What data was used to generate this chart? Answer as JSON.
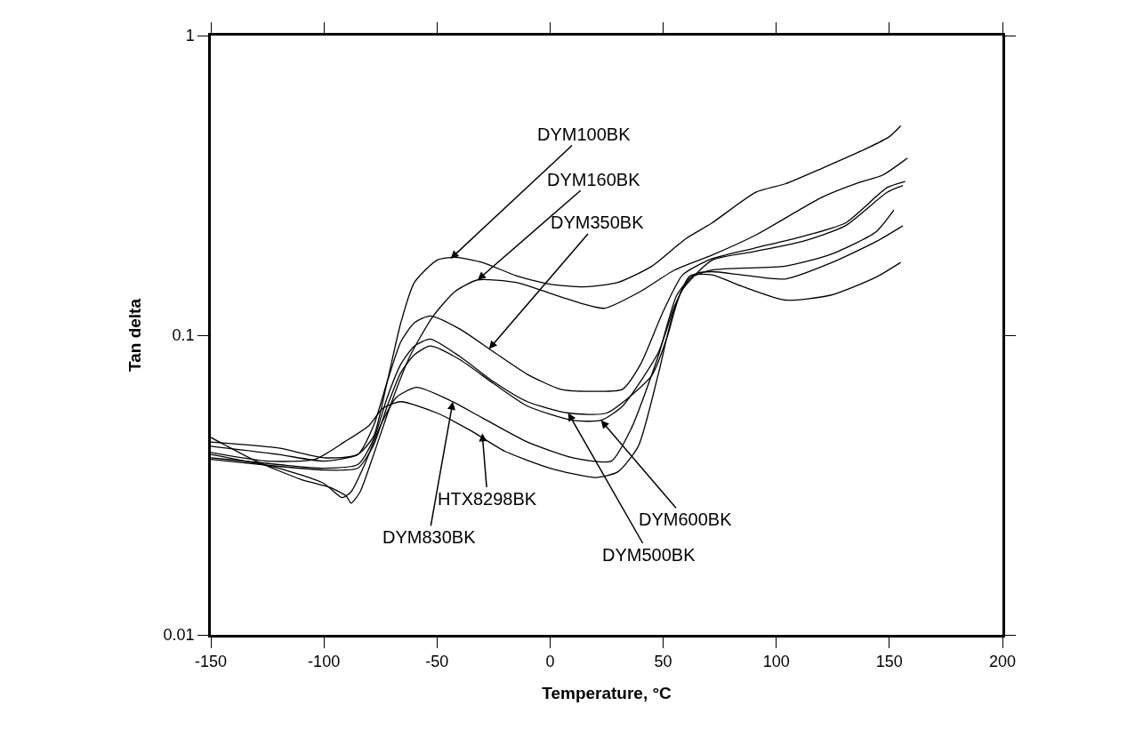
{
  "chart_data": {
    "type": "line",
    "xlabel": "Temperature, °C",
    "ylabel": "Tan delta",
    "log": "y",
    "xlim": [
      -150,
      200
    ],
    "xticks": [
      -150,
      -100,
      -50,
      0,
      50,
      100,
      150,
      200
    ],
    "ylim": [
      0.01,
      1
    ],
    "yticks": [
      0.01,
      0.1,
      1
    ],
    "series": [
      {
        "color": "#000000",
        "x": [
          -150,
          -120,
          -100,
          -85,
          -78,
          -72,
          -66,
          -60,
          -50,
          -42,
          -30,
          -15,
          0,
          15,
          30,
          45,
          60,
          71.6,
          91,
          104,
          120,
          140,
          150,
          155
        ],
        "values": [
          0.0426,
          0.04,
          0.038,
          0.04,
          0.046,
          0.07,
          0.11,
          0.15,
          0.178,
          0.182,
          0.175,
          0.158,
          0.148,
          0.145,
          0.15,
          0.17,
          0.21,
          0.237,
          0.3,
          0.32,
          0.36,
          0.42,
          0.46,
          0.5
        ]
      },
      {
        "color": "#000000",
        "x": [
          -150,
          -130,
          -110,
          -97,
          -90,
          -88,
          -84,
          -78,
          -70,
          -62,
          -52,
          -42,
          -32,
          -15,
          0,
          15,
          24,
          40,
          55,
          71.6,
          91,
          120,
          137,
          147,
          158
        ],
        "values": [
          0.0456,
          0.038,
          0.033,
          0.031,
          0.029,
          0.0275,
          0.03,
          0.04,
          0.06,
          0.085,
          0.115,
          0.14,
          0.153,
          0.15,
          0.138,
          0.127,
          0.123,
          0.14,
          0.165,
          0.185,
          0.216,
          0.288,
          0.324,
          0.342,
          0.39
        ]
      },
      {
        "color": "#000000",
        "x": [
          -150,
          -120,
          -100,
          -85,
          -78,
          -72,
          -66,
          -60,
          -53,
          -40,
          -25,
          -10,
          4.7,
          20,
          32,
          40,
          50,
          58.6,
          71.6,
          90,
          111,
          130.6,
          149,
          157
        ],
        "values": [
          0.044,
          0.042,
          0.039,
          0.04,
          0.05,
          0.07,
          0.095,
          0.11,
          0.116,
          0.105,
          0.088,
          0.074,
          0.066,
          0.065,
          0.066,
          0.08,
          0.12,
          0.159,
          0.18,
          0.195,
          0.213,
          0.237,
          0.311,
          0.326
        ]
      },
      {
        "color": "#000000",
        "x": [
          -150,
          -120,
          -100,
          -85,
          -78,
          -72,
          -66,
          -60,
          -53,
          -40,
          -25,
          -10,
          8,
          25,
          45,
          52,
          58,
          71.6,
          90,
          111,
          130.6,
          149,
          156
        ],
        "values": [
          0.039,
          0.037,
          0.036,
          0.037,
          0.045,
          0.062,
          0.08,
          0.092,
          0.097,
          0.085,
          0.07,
          0.06,
          0.055,
          0.055,
          0.0735,
          0.1,
          0.14,
          0.178,
          0.19,
          0.205,
          0.232,
          0.3,
          0.316
        ]
      },
      {
        "color": "#000000",
        "x": [
          -150,
          -120,
          -100,
          -85,
          -78,
          -72,
          -66,
          -60,
          -53,
          -40,
          -25,
          -10,
          10,
          22.5,
          32,
          48,
          55,
          62,
          71.6,
          104,
          124,
          144,
          152
        ],
        "values": [
          0.0385,
          0.0365,
          0.0355,
          0.036,
          0.043,
          0.058,
          0.075,
          0.086,
          0.092,
          0.083,
          0.069,
          0.058,
          0.052,
          0.052,
          0.058,
          0.088,
          0.125,
          0.155,
          0.165,
          0.17,
          0.186,
          0.221,
          0.262
        ]
      },
      {
        "color": "#000000",
        "x": [
          -150,
          -120,
          -100,
          -92,
          -88,
          -82,
          -75,
          -68,
          -59,
          -45,
          -30,
          -10,
          10,
          27,
          36,
          48,
          56,
          64,
          71.6,
          84.5,
          104,
          124,
          144,
          156
        ],
        "values": [
          0.04,
          0.036,
          0.032,
          0.0287,
          0.03,
          0.037,
          0.05,
          0.062,
          0.067,
          0.061,
          0.053,
          0.044,
          0.039,
          0.038,
          0.049,
          0.086,
          0.136,
          0.16,
          0.163,
          0.159,
          0.154,
          0.174,
          0.205,
          0.232
        ]
      },
      {
        "color": "#000000",
        "x": [
          -150,
          -125,
          -104,
          -91,
          -80,
          -74,
          -66,
          -50,
          -35,
          -20,
          0,
          20,
          30,
          39,
          48,
          54.7,
          62,
          71.6,
          84.5,
          104,
          124,
          144,
          155
        ],
        "values": [
          0.0406,
          0.038,
          0.0385,
          0.044,
          0.05,
          0.057,
          0.06,
          0.055,
          0.048,
          0.041,
          0.036,
          0.0335,
          0.035,
          0.0426,
          0.075,
          0.121,
          0.158,
          0.159,
          0.146,
          0.131,
          0.136,
          0.156,
          0.175
        ]
      }
    ],
    "annotations": [
      {
        "text": "DYM100BK",
        "x": -44,
        "y": 0.18
      },
      {
        "text": "DYM160BK",
        "x": -32,
        "y": 0.153
      },
      {
        "text": "DYM350BK",
        "x": -27,
        "y": 0.09
      },
      {
        "text": "HTX8298BK",
        "x": -30,
        "y": 0.047
      },
      {
        "text": "DYM830BK",
        "x": -43,
        "y": 0.06
      },
      {
        "text": "DYM500BK",
        "x": 8,
        "y": 0.055
      },
      {
        "text": "DYM600BK",
        "x": 22.5,
        "y": 0.052
      }
    ]
  }
}
